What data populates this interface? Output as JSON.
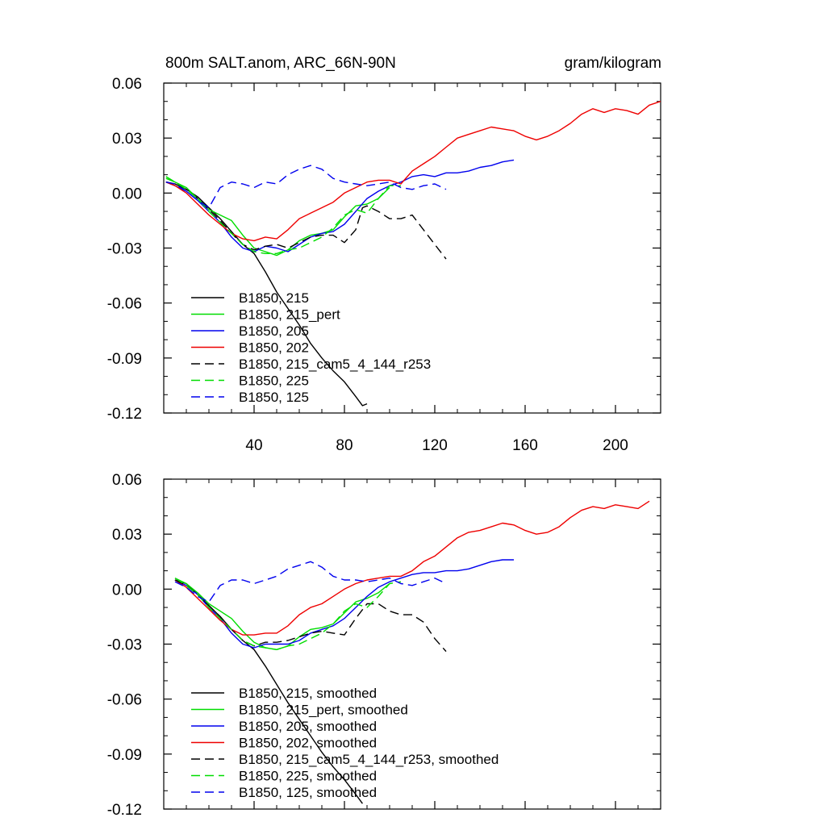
{
  "chart_data": [
    {
      "type": "line",
      "panel": "top",
      "title_left": "800m SALT.anom, ARC_66N-90N",
      "title_right": "gram/kilogram",
      "xlim": [
        0,
        220
      ],
      "ylim": [
        -0.12,
        0.06
      ],
      "xticks": [
        40,
        80,
        120,
        160,
        200
      ],
      "yticks": [
        0.06,
        0.03,
        0.0,
        -0.03,
        -0.06,
        -0.09,
        -0.12
      ],
      "ytick_labels": [
        "0.06",
        "0.03",
        "0.00",
        "-0.03",
        "-0.06",
        "-0.09",
        "-0.12"
      ],
      "legend_position": "bottom-left",
      "series": [
        {
          "name": "B1850, 215",
          "color": "#000000",
          "dash": "solid",
          "x": [
            1,
            5,
            10,
            15,
            20,
            25,
            30,
            35,
            40,
            45,
            50,
            55,
            60,
            65,
            70,
            75,
            80,
            85,
            88,
            90
          ],
          "y": [
            0.006,
            0.005,
            0.002,
            -0.002,
            -0.008,
            -0.014,
            -0.021,
            -0.028,
            -0.033,
            -0.043,
            -0.054,
            -0.063,
            -0.072,
            -0.082,
            -0.09,
            -0.097,
            -0.103,
            -0.111,
            -0.116,
            -0.115
          ]
        },
        {
          "name": "B1850, 215_pert",
          "color": "#00dd00",
          "dash": "solid",
          "x": [
            1,
            5,
            10,
            15,
            20,
            25,
            30,
            35,
            40,
            45,
            50,
            55,
            60,
            65,
            70,
            75,
            80,
            85,
            90,
            95,
            100
          ],
          "y": [
            0.008,
            0.006,
            0.003,
            -0.003,
            -0.009,
            -0.012,
            -0.015,
            -0.023,
            -0.03,
            -0.032,
            -0.034,
            -0.031,
            -0.026,
            -0.023,
            -0.022,
            -0.02,
            -0.013,
            -0.007,
            -0.006,
            -0.003,
            0.003
          ]
        },
        {
          "name": "B1850, 205",
          "color": "#0000ee",
          "dash": "solid",
          "x": [
            1,
            5,
            10,
            15,
            20,
            25,
            30,
            35,
            40,
            45,
            50,
            55,
            60,
            65,
            70,
            75,
            80,
            85,
            90,
            95,
            100,
            105,
            110,
            115,
            120,
            125,
            130,
            135,
            140,
            145,
            150,
            155
          ],
          "y": [
            0.006,
            0.004,
            0.001,
            -0.004,
            -0.01,
            -0.016,
            -0.024,
            -0.03,
            -0.032,
            -0.029,
            -0.03,
            -0.032,
            -0.028,
            -0.024,
            -0.022,
            -0.021,
            -0.017,
            -0.01,
            -0.003,
            0.001,
            0.004,
            0.006,
            0.009,
            0.01,
            0.009,
            0.011,
            0.011,
            0.012,
            0.014,
            0.015,
            0.017,
            0.018
          ]
        },
        {
          "name": "B1850, 202",
          "color": "#ee0000",
          "dash": "solid",
          "x": [
            1,
            5,
            10,
            15,
            20,
            25,
            30,
            35,
            40,
            45,
            50,
            55,
            60,
            65,
            70,
            75,
            80,
            85,
            90,
            95,
            100,
            105,
            110,
            115,
            120,
            125,
            130,
            135,
            140,
            145,
            150,
            155,
            160,
            165,
            170,
            175,
            180,
            185,
            190,
            195,
            200,
            205,
            210,
            215,
            220
          ],
          "y": [
            0.006,
            0.004,
            0.0,
            -0.006,
            -0.012,
            -0.017,
            -0.022,
            -0.025,
            -0.026,
            -0.024,
            -0.025,
            -0.02,
            -0.014,
            -0.011,
            -0.008,
            -0.005,
            0.0,
            0.003,
            0.006,
            0.007,
            0.007,
            0.005,
            0.012,
            0.016,
            0.02,
            0.025,
            0.03,
            0.032,
            0.034,
            0.036,
            0.035,
            0.034,
            0.031,
            0.029,
            0.031,
            0.034,
            0.038,
            0.043,
            0.046,
            0.044,
            0.046,
            0.045,
            0.043,
            0.048,
            0.05
          ]
        },
        {
          "name": "B1850, 215_cam5_4_144_r253",
          "color": "#000000",
          "dash": "dashed",
          "x": [
            1,
            5,
            10,
            15,
            20,
            25,
            30,
            35,
            40,
            45,
            50,
            55,
            60,
            65,
            70,
            75,
            80,
            85,
            88,
            90,
            95,
            100,
            105,
            110,
            115,
            120,
            125
          ],
          "y": [
            0.006,
            0.005,
            0.002,
            -0.003,
            -0.009,
            -0.015,
            -0.022,
            -0.028,
            -0.031,
            -0.029,
            -0.028,
            -0.03,
            -0.027,
            -0.024,
            -0.023,
            -0.023,
            -0.027,
            -0.02,
            -0.008,
            -0.007,
            -0.01,
            -0.014,
            -0.014,
            -0.012,
            -0.02,
            -0.028,
            -0.036
          ]
        },
        {
          "name": "B1850, 225",
          "color": "#00dd00",
          "dash": "dashed",
          "x": [
            1,
            5,
            10,
            15,
            20,
            25,
            30,
            35,
            40,
            45,
            50,
            55,
            60,
            65,
            70,
            75,
            80,
            85,
            90,
            95,
            100,
            105
          ],
          "y": [
            0.009,
            0.006,
            0.002,
            -0.003,
            -0.01,
            -0.016,
            -0.022,
            -0.028,
            -0.032,
            -0.033,
            -0.033,
            -0.031,
            -0.03,
            -0.027,
            -0.024,
            -0.019,
            -0.012,
            -0.009,
            -0.011,
            -0.003,
            0.004,
            0.004
          ]
        },
        {
          "name": "B1850, 125",
          "color": "#0000ee",
          "dash": "dashed",
          "x": [
            1,
            5,
            10,
            15,
            20,
            25,
            30,
            35,
            40,
            45,
            50,
            55,
            60,
            65,
            70,
            75,
            80,
            85,
            90,
            95,
            100,
            105,
            110,
            115,
            120,
            125
          ],
          "y": [
            0.006,
            0.005,
            0.001,
            -0.004,
            -0.008,
            0.003,
            0.006,
            0.005,
            0.003,
            0.006,
            0.005,
            0.01,
            0.013,
            0.015,
            0.013,
            0.008,
            0.006,
            0.005,
            0.004,
            0.005,
            0.006,
            0.003,
            0.002,
            0.004,
            0.005,
            0.002
          ]
        }
      ]
    },
    {
      "type": "line",
      "panel": "bottom",
      "xlim": [
        0,
        220
      ],
      "ylim": [
        -0.12,
        0.06
      ],
      "xticks": [
        40,
        80,
        120,
        160,
        200
      ],
      "yticks": [
        0.06,
        0.03,
        0.0,
        -0.03,
        -0.06,
        -0.09,
        -0.12
      ],
      "ytick_labels": [
        "0.06",
        "0.03",
        "0.00",
        "-0.03",
        "-0.06",
        "-0.09",
        "-0.12"
      ],
      "legend_position": "bottom-left",
      "series": [
        {
          "name": "B1850, 215, smoothed",
          "color": "#000000",
          "dash": "solid",
          "x": [
            5,
            10,
            15,
            20,
            25,
            30,
            35,
            40,
            45,
            50,
            55,
            60,
            65,
            70,
            75,
            80,
            85,
            88
          ],
          "y": [
            0.005,
            0.003,
            -0.003,
            -0.009,
            -0.015,
            -0.022,
            -0.028,
            -0.033,
            -0.042,
            -0.052,
            -0.062,
            -0.071,
            -0.08,
            -0.089,
            -0.097,
            -0.104,
            -0.112,
            -0.117
          ]
        },
        {
          "name": "B1850, 215_pert, smoothed",
          "color": "#00dd00",
          "dash": "solid",
          "x": [
            5,
            10,
            15,
            20,
            25,
            30,
            35,
            40,
            45,
            50,
            55,
            60,
            65,
            70,
            75,
            80,
            85,
            90,
            95,
            100
          ],
          "y": [
            0.006,
            0.003,
            -0.002,
            -0.008,
            -0.012,
            -0.016,
            -0.023,
            -0.029,
            -0.032,
            -0.033,
            -0.031,
            -0.026,
            -0.022,
            -0.021,
            -0.019,
            -0.013,
            -0.007,
            -0.005,
            -0.002,
            0.003
          ]
        },
        {
          "name": "B1850, 205, smoothed",
          "color": "#0000ee",
          "dash": "solid",
          "x": [
            5,
            10,
            15,
            20,
            25,
            30,
            35,
            40,
            45,
            50,
            55,
            60,
            65,
            70,
            75,
            80,
            85,
            90,
            95,
            100,
            105,
            110,
            115,
            120,
            125,
            130,
            135,
            140,
            145,
            150,
            155
          ],
          "y": [
            0.005,
            0.002,
            -0.003,
            -0.01,
            -0.016,
            -0.024,
            -0.03,
            -0.032,
            -0.03,
            -0.03,
            -0.03,
            -0.028,
            -0.024,
            -0.022,
            -0.02,
            -0.016,
            -0.01,
            -0.004,
            0.001,
            0.004,
            0.006,
            0.008,
            0.009,
            0.009,
            0.01,
            0.01,
            0.011,
            0.013,
            0.015,
            0.016,
            0.016
          ]
        },
        {
          "name": "B1850, 202, smoothed",
          "color": "#ee0000",
          "dash": "solid",
          "x": [
            5,
            10,
            15,
            20,
            25,
            30,
            35,
            40,
            45,
            50,
            55,
            60,
            65,
            70,
            75,
            80,
            85,
            90,
            95,
            100,
            105,
            110,
            115,
            120,
            125,
            130,
            135,
            140,
            145,
            150,
            155,
            160,
            165,
            170,
            175,
            180,
            185,
            190,
            195,
            200,
            205,
            210,
            215
          ],
          "y": [
            0.005,
            0.001,
            -0.005,
            -0.011,
            -0.017,
            -0.022,
            -0.025,
            -0.025,
            -0.024,
            -0.024,
            -0.02,
            -0.014,
            -0.01,
            -0.008,
            -0.004,
            0.0,
            0.003,
            0.005,
            0.006,
            0.007,
            0.007,
            0.01,
            0.015,
            0.018,
            0.023,
            0.028,
            0.031,
            0.032,
            0.034,
            0.036,
            0.035,
            0.032,
            0.03,
            0.031,
            0.034,
            0.039,
            0.043,
            0.045,
            0.044,
            0.046,
            0.045,
            0.044,
            0.048
          ]
        },
        {
          "name": "B1850, 215_cam5_4_144_r253, smoothed",
          "color": "#000000",
          "dash": "dashed",
          "x": [
            5,
            10,
            15,
            20,
            25,
            30,
            35,
            40,
            45,
            50,
            55,
            60,
            65,
            70,
            75,
            80,
            85,
            90,
            95,
            100,
            105,
            110,
            115,
            120,
            125
          ],
          "y": [
            0.005,
            0.002,
            -0.003,
            -0.009,
            -0.015,
            -0.022,
            -0.028,
            -0.031,
            -0.029,
            -0.029,
            -0.028,
            -0.026,
            -0.024,
            -0.023,
            -0.024,
            -0.025,
            -0.016,
            -0.008,
            -0.008,
            -0.012,
            -0.014,
            -0.014,
            -0.018,
            -0.027,
            -0.034
          ]
        },
        {
          "name": "B1850, 225, smoothed",
          "color": "#00dd00",
          "dash": "dashed",
          "x": [
            5,
            10,
            15,
            20,
            25,
            30,
            35,
            40,
            45,
            50,
            55,
            60,
            65,
            70,
            75,
            80,
            85,
            90,
            95,
            100,
            105
          ],
          "y": [
            0.006,
            0.002,
            -0.003,
            -0.01,
            -0.016,
            -0.022,
            -0.028,
            -0.031,
            -0.032,
            -0.033,
            -0.031,
            -0.03,
            -0.027,
            -0.024,
            -0.019,
            -0.012,
            -0.008,
            -0.01,
            -0.004,
            0.003,
            0.004
          ]
        },
        {
          "name": "B1850, 125, smoothed",
          "color": "#0000ee",
          "dash": "dashed",
          "x": [
            5,
            10,
            15,
            20,
            25,
            30,
            35,
            40,
            45,
            50,
            55,
            60,
            65,
            70,
            75,
            80,
            85,
            90,
            95,
            100,
            105,
            110,
            115,
            120,
            125
          ],
          "y": [
            0.004,
            0.001,
            -0.004,
            -0.007,
            0.002,
            0.005,
            0.005,
            0.003,
            0.005,
            0.007,
            0.011,
            0.013,
            0.015,
            0.012,
            0.007,
            0.005,
            0.005,
            0.004,
            0.005,
            0.006,
            0.003,
            0.002,
            0.004,
            0.006,
            0.003
          ]
        }
      ]
    }
  ]
}
